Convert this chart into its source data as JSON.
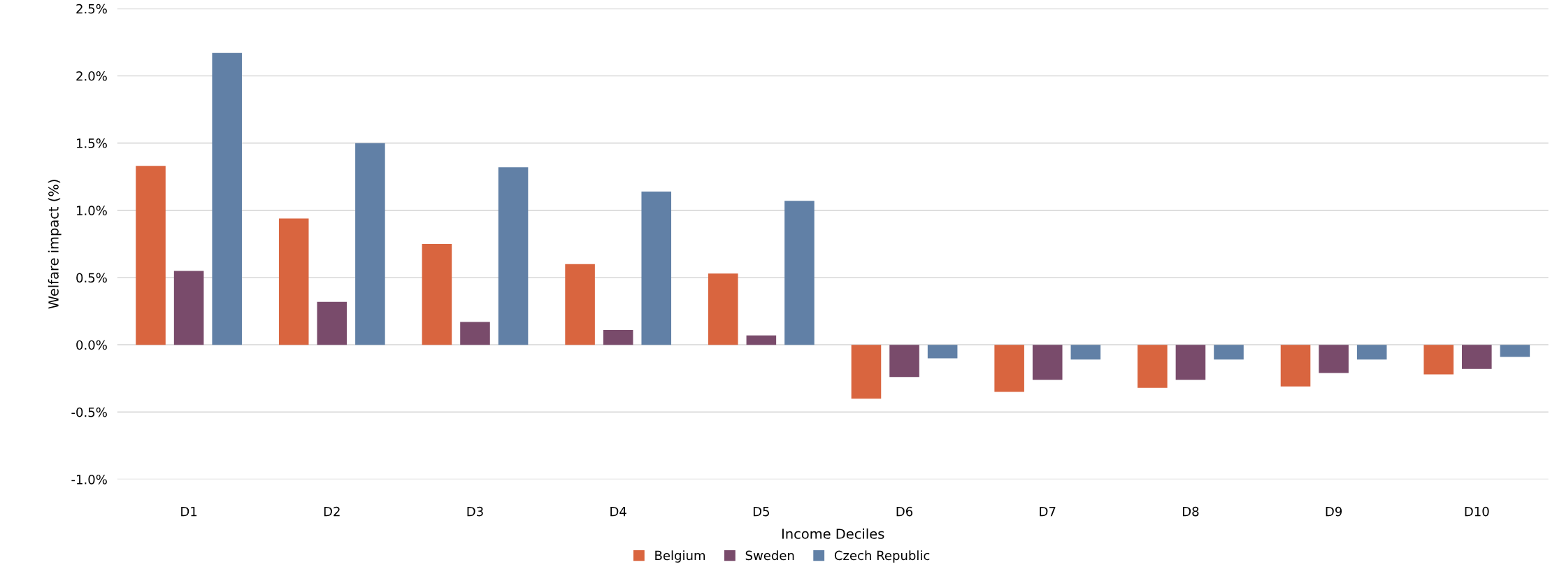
{
  "chart_data": {
    "type": "bar",
    "xlabel": "Income Deciles",
    "ylabel": "Welfare impact (%)",
    "categories": [
      "D1",
      "D2",
      "D3",
      "D4",
      "D5",
      "D6",
      "D7",
      "D8",
      "D9",
      "D10"
    ],
    "series": [
      {
        "name": "Belgium",
        "color": "#d9653f",
        "values": [
          1.33,
          0.94,
          0.75,
          0.6,
          0.53,
          -0.4,
          -0.35,
          -0.32,
          -0.31,
          -0.22
        ]
      },
      {
        "name": "Sweden",
        "color": "#794b6b",
        "values": [
          0.55,
          0.32,
          0.17,
          0.11,
          0.07,
          -0.24,
          -0.26,
          -0.26,
          -0.21,
          -0.18
        ]
      },
      {
        "name": "Czech Republic",
        "color": "#6180a6",
        "values": [
          2.17,
          1.5,
          1.32,
          1.14,
          1.07,
          -0.1,
          -0.11,
          -0.11,
          -0.11,
          -0.09
        ]
      }
    ],
    "ylim": [
      -1.0,
      2.5
    ],
    "yticks": [
      {
        "value": -1.0,
        "label": "-1.0%"
      },
      {
        "value": -0.5,
        "label": "-0.5%"
      },
      {
        "value": 0.0,
        "label": "0.0%"
      },
      {
        "value": 0.5,
        "label": "0.5%"
      },
      {
        "value": 1.0,
        "label": "1.0%"
      },
      {
        "value": 1.5,
        "label": "1.5%"
      },
      {
        "value": 2.0,
        "label": "2.0%"
      },
      {
        "value": 2.5,
        "label": "2.5%"
      }
    ],
    "grid": "y",
    "legend": "bottom"
  }
}
